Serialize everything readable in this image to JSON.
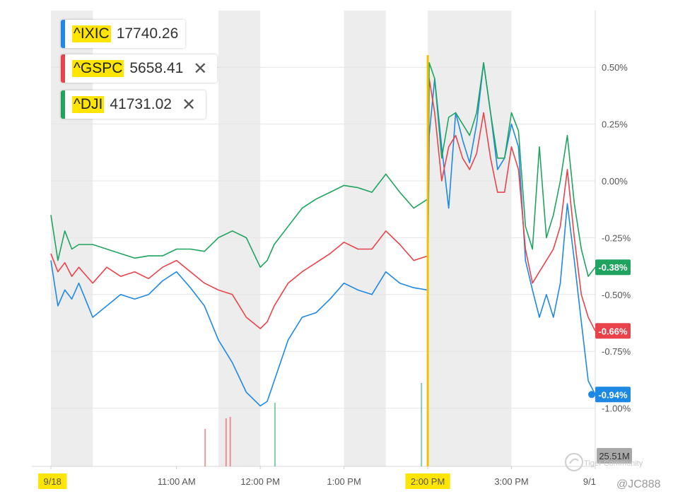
{
  "legend": [
    {
      "symbol": "^IXIC",
      "value": "17740.26",
      "color": "#1e88e5",
      "closable": false
    },
    {
      "symbol": "^GSPC",
      "value": "5658.41",
      "color": "#e8434a",
      "closable": true
    },
    {
      "symbol": "^DJI",
      "value": "41731.02",
      "color": "#1ea45f",
      "closable": true
    }
  ],
  "close_glyph": "✕",
  "watermark": {
    "text": "Tiger Community",
    "user": "@JC888"
  },
  "volume_label": "25.51M",
  "colors": {
    "ixic": "#1e88e5",
    "gspc": "#e8434a",
    "dji": "#1ea45f",
    "highlight": "#ffe500",
    "marker": "#f2c200",
    "shade": "#ededed",
    "grid": "#e4e4e4",
    "axis_text": "#555555"
  },
  "chart_data": {
    "type": "line",
    "title": "",
    "xlabel": "",
    "ylabel": "",
    "x_ticks": [
      "9/18",
      "11:00 AM",
      "12:00 PM",
      "1:00 PM",
      "2:00 PM",
      "3:00 PM",
      "9/1"
    ],
    "x_tick_minutes": [
      570,
      660,
      720,
      780,
      840,
      900,
      960
    ],
    "highlighted_x_ticks": [
      "9/18",
      "2:00 PM"
    ],
    "marker_time": "2:00 PM",
    "x_range_minutes": [
      570,
      960
    ],
    "y_ticks": [
      "0.50%",
      "0.25%",
      "0.00%",
      "-0.25%",
      "-0.50%",
      "-0.75%",
      "-1.00%"
    ],
    "y_tick_values": [
      0.5,
      0.25,
      0.0,
      -0.25,
      -0.5,
      -0.75,
      -1.0
    ],
    "ylim": [
      -1.0,
      0.5
    ],
    "grid": true,
    "series": [
      {
        "name": "^IXIC",
        "last_label": "-0.94%",
        "x": [
          570,
          575,
          580,
          585,
          590,
          600,
          610,
          620,
          630,
          640,
          650,
          660,
          670,
          680,
          690,
          700,
          710,
          720,
          725,
          730,
          740,
          750,
          760,
          770,
          780,
          790,
          800,
          810,
          820,
          830,
          840,
          841,
          845,
          850,
          855,
          860,
          865,
          870,
          875,
          880,
          885,
          890,
          895,
          900,
          905,
          910,
          915,
          920,
          925,
          930,
          935,
          940,
          945,
          950,
          955,
          960
        ],
        "y": [
          -0.35,
          -0.55,
          -0.48,
          -0.52,
          -0.45,
          -0.6,
          -0.55,
          -0.5,
          -0.52,
          -0.5,
          -0.44,
          -0.4,
          -0.47,
          -0.55,
          -0.7,
          -0.8,
          -0.93,
          -0.99,
          -0.97,
          -0.88,
          -0.7,
          -0.6,
          -0.58,
          -0.52,
          -0.45,
          -0.48,
          -0.5,
          -0.4,
          -0.45,
          -0.47,
          -0.48,
          0.2,
          0.45,
          0.15,
          -0.12,
          0.3,
          0.18,
          0.08,
          0.25,
          0.52,
          0.3,
          0.05,
          0.1,
          0.25,
          0.15,
          -0.35,
          -0.48,
          -0.6,
          -0.5,
          -0.6,
          -0.45,
          -0.1,
          -0.35,
          -0.62,
          -0.88,
          -0.94
        ]
      },
      {
        "name": "^GSPC",
        "last_label": "-0.66%",
        "x": [
          570,
          575,
          580,
          585,
          590,
          600,
          610,
          620,
          630,
          640,
          650,
          660,
          670,
          680,
          690,
          700,
          710,
          720,
          725,
          730,
          740,
          750,
          760,
          770,
          780,
          790,
          800,
          810,
          820,
          830,
          840,
          841,
          845,
          850,
          855,
          860,
          865,
          870,
          875,
          880,
          885,
          890,
          895,
          900,
          905,
          910,
          915,
          920,
          925,
          930,
          935,
          940,
          945,
          950,
          955,
          960
        ],
        "y": [
          -0.32,
          -0.4,
          -0.36,
          -0.42,
          -0.38,
          -0.45,
          -0.38,
          -0.42,
          -0.4,
          -0.43,
          -0.38,
          -0.35,
          -0.4,
          -0.45,
          -0.48,
          -0.5,
          -0.6,
          -0.65,
          -0.62,
          -0.55,
          -0.45,
          -0.4,
          -0.36,
          -0.32,
          -0.27,
          -0.3,
          -0.3,
          -0.22,
          -0.28,
          -0.35,
          -0.33,
          0.45,
          0.3,
          0.0,
          0.15,
          0.2,
          0.1,
          0.05,
          0.12,
          0.3,
          0.1,
          -0.05,
          -0.05,
          0.15,
          0.05,
          -0.3,
          -0.45,
          -0.4,
          -0.35,
          -0.3,
          -0.2,
          0.05,
          -0.25,
          -0.5,
          -0.6,
          -0.66
        ]
      },
      {
        "name": "^DJI",
        "last_label": "-0.38%",
        "x": [
          570,
          575,
          580,
          585,
          590,
          600,
          610,
          620,
          630,
          640,
          650,
          660,
          670,
          680,
          690,
          700,
          710,
          720,
          725,
          730,
          740,
          750,
          760,
          770,
          780,
          790,
          800,
          810,
          820,
          830,
          840,
          841,
          845,
          850,
          855,
          860,
          865,
          870,
          875,
          880,
          885,
          890,
          895,
          900,
          905,
          910,
          915,
          920,
          925,
          930,
          935,
          940,
          945,
          950,
          955,
          960
        ],
        "y": [
          -0.15,
          -0.35,
          -0.22,
          -0.3,
          -0.28,
          -0.28,
          -0.3,
          -0.32,
          -0.34,
          -0.33,
          -0.33,
          -0.3,
          -0.3,
          -0.31,
          -0.25,
          -0.22,
          -0.25,
          -0.38,
          -0.35,
          -0.28,
          -0.2,
          -0.12,
          -0.08,
          -0.05,
          -0.02,
          -0.03,
          -0.05,
          0.03,
          -0.05,
          -0.12,
          -0.08,
          0.52,
          0.45,
          0.1,
          0.28,
          0.3,
          0.25,
          0.2,
          0.3,
          0.52,
          0.3,
          0.1,
          0.1,
          0.3,
          0.22,
          -0.2,
          -0.3,
          0.15,
          -0.25,
          -0.15,
          0.0,
          0.2,
          -0.1,
          -0.3,
          -0.42,
          -0.38
        ]
      }
    ]
  }
}
